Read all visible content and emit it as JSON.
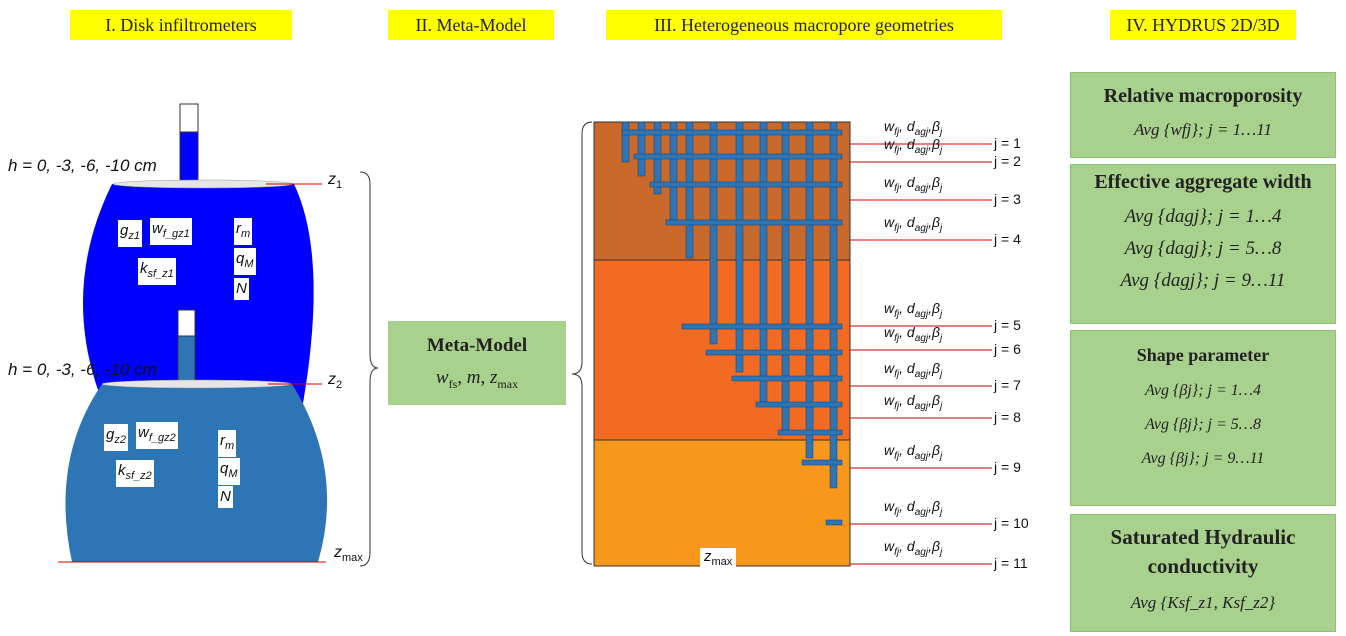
{
  "headers": {
    "h1": "I. Disk infiltrometers",
    "h2": "II. Meta-Model",
    "h3": "III. Heterogeneous macropore geometries",
    "h4": "IV. HYDRUS 2D/3D"
  },
  "disk": {
    "pressure_label_top": "h = 0, -3, -6, -10 cm",
    "pressure_label_bottom": "h = 0, -3, -6, -10 cm",
    "z1": "z",
    "z1_sub": "1",
    "z2": "z",
    "z2_sub": "2",
    "zmax": "z",
    "zmax_sub": "max",
    "upper": {
      "g": "g",
      "g_sub": "z1",
      "w": "w",
      "w_sub": "f_gz1",
      "k": "k",
      "k_sub": "sf_z1",
      "r": "r",
      "r_sub": "m",
      "q": "q",
      "q_sub": "M",
      "n": "N"
    },
    "lower": {
      "g": "g",
      "g_sub": "z2",
      "w": "w",
      "w_sub": "f_gz2",
      "k": "k",
      "k_sub": "sf_z2",
      "r": "r",
      "r_sub": "m",
      "q": "q",
      "q_sub": "M",
      "n": "N"
    },
    "colors": {
      "upper": "#0000ff",
      "lower": "#2e75b6"
    }
  },
  "meta_model": {
    "title": "Meta-Model",
    "params": "w",
    "params_sub": "fs",
    "params_rest": ", m, z",
    "params_rest_sub": "max"
  },
  "soil": {
    "zmax": "z",
    "zmax_sub": "max",
    "layer_colors": [
      "#c96a2c",
      "#f26b22",
      "#f7981d"
    ],
    "macropore_color": "#2e75b6",
    "param_label": "w",
    "param_sub": "fj",
    "param_d": ", d",
    "param_d_sub": "agj",
    "param_beta": ",β",
    "param_beta_sub": "j",
    "j_labels": [
      "j = 1",
      "j = 2",
      "j = 3",
      "j = 4",
      "j = 5",
      "j = 6",
      "j = 7",
      "j = 8",
      "j = 9",
      "j = 10",
      "j = 11"
    ]
  },
  "hydrus": {
    "relative_macroporosity": {
      "title": "Relative macroporosity",
      "values": [
        "Avg {wfj}; j = 1…11"
      ]
    },
    "effective_aggregate_width": {
      "title": "Effective aggregate width",
      "values": [
        "Avg {dagj}; j = 1…4",
        "Avg {dagj}; j = 5…8",
        "Avg {dagj}; j = 9…11"
      ]
    },
    "shape_parameter": {
      "title": "Shape parameter",
      "values": [
        "Avg {βj}; j = 1…4",
        "Avg {βj}; j = 5…8",
        "Avg {βj}; j = 9…11"
      ]
    },
    "saturated_hydraulic_conductivity": {
      "title_line1": "Saturated Hydraulic",
      "title_line2": "conductivity",
      "values": [
        "Avg {Ksf_z1, Ksf_z2}"
      ]
    }
  }
}
